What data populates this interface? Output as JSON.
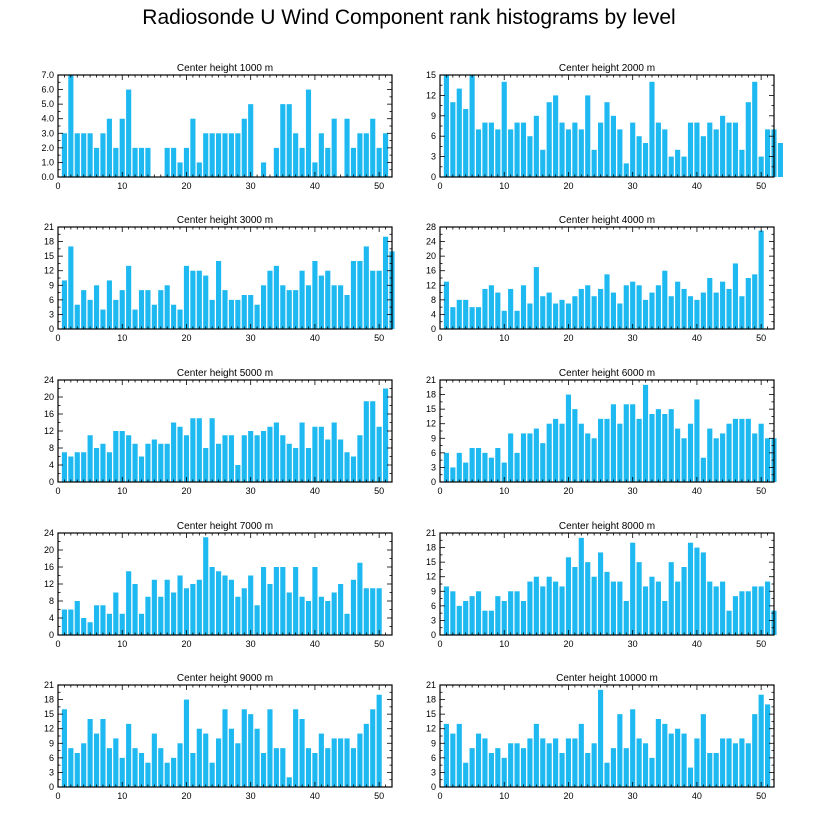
{
  "title": "Radiosonde U Wind Component rank histograms by level",
  "bar_color": "#1EB9F0",
  "chart_data": [
    {
      "type": "bar",
      "title": "Center height 1000 m",
      "xlim": [
        0,
        52
      ],
      "ylim": [
        0,
        7
      ],
      "xticks": [
        0,
        10,
        20,
        30,
        40,
        50
      ],
      "yticks": [
        "0.0",
        "1.0",
        "2.0",
        "3.0",
        "4.0",
        "5.0",
        "6.0",
        "7.0"
      ],
      "values": [
        3,
        7,
        3,
        3,
        3,
        2,
        3,
        4,
        2,
        4,
        6,
        2,
        2,
        2,
        0,
        0,
        2,
        2,
        1,
        2,
        4,
        1,
        3,
        3,
        3,
        3,
        3,
        3,
        4,
        5,
        0,
        1,
        0,
        2,
        5,
        5,
        3,
        2,
        6,
        1,
        3,
        2,
        4,
        0,
        4,
        2,
        3,
        3,
        4,
        2,
        3
      ]
    },
    {
      "type": "bar",
      "title": "Center height 2000 m",
      "xlim": [
        0,
        52
      ],
      "ylim": [
        0,
        15
      ],
      "xticks": [
        0,
        10,
        20,
        30,
        40,
        50
      ],
      "yticks": [
        "0",
        "3",
        "6",
        "9",
        "12",
        "15"
      ],
      "values": [
        15,
        11,
        13,
        10,
        15,
        7,
        8,
        8,
        7,
        14,
        7,
        8,
        8,
        6,
        9,
        4,
        11,
        12,
        8,
        7,
        8,
        7,
        12,
        4,
        8,
        11,
        9,
        7,
        2,
        8,
        6,
        5,
        14,
        8,
        7,
        3,
        4,
        3,
        8,
        8,
        6,
        8,
        7,
        9,
        8,
        8,
        4,
        11,
        14,
        3,
        7,
        7,
        5
      ]
    },
    {
      "type": "bar",
      "title": "Center height 3000 m",
      "xlim": [
        0,
        52
      ],
      "ylim": [
        0,
        21
      ],
      "xticks": [
        0,
        10,
        20,
        30,
        40,
        50
      ],
      "yticks": [
        "0",
        "3",
        "6",
        "9",
        "12",
        "15",
        "18",
        "21"
      ],
      "values": [
        10,
        17,
        5,
        8,
        6,
        9,
        4,
        10,
        6,
        8,
        13,
        4,
        8,
        8,
        5,
        8,
        9,
        5,
        4,
        13,
        12,
        12,
        11,
        6,
        14,
        8,
        6,
        6,
        7,
        7,
        5,
        9,
        12,
        13,
        9,
        8,
        8,
        12,
        9,
        14,
        11,
        12,
        9,
        9,
        7,
        14,
        14,
        17,
        12,
        12,
        19,
        16
      ]
    },
    {
      "type": "bar",
      "title": "Center height 4000 m",
      "xlim": [
        0,
        52
      ],
      "ylim": [
        0,
        28
      ],
      "xticks": [
        0,
        10,
        20,
        30,
        40,
        50
      ],
      "yticks": [
        "0",
        "4",
        "8",
        "12",
        "16",
        "20",
        "24",
        "28"
      ],
      "values": [
        13,
        6,
        8,
        8,
        6,
        6,
        11,
        12,
        10,
        5,
        11,
        5,
        12,
        7,
        17,
        9,
        10,
        7,
        8,
        7,
        9,
        11,
        12,
        9,
        11,
        15,
        10,
        7,
        12,
        13,
        12,
        8,
        10,
        12,
        16,
        9,
        13,
        11,
        9,
        8,
        10,
        14,
        10,
        13,
        11,
        18,
        9,
        14,
        15,
        27
      ]
    },
    {
      "type": "bar",
      "title": "Center height 5000 m",
      "xlim": [
        0,
        52
      ],
      "ylim": [
        0,
        24
      ],
      "xticks": [
        0,
        10,
        20,
        30,
        40,
        50
      ],
      "yticks": [
        "0",
        "4",
        "8",
        "12",
        "16",
        "20",
        "24"
      ],
      "values": [
        7,
        6,
        7,
        7,
        11,
        8,
        9,
        7,
        12,
        12,
        11,
        9,
        6,
        9,
        10,
        9,
        9,
        14,
        13,
        11,
        15,
        15,
        8,
        15,
        9,
        11,
        11,
        4,
        11,
        12,
        11,
        12,
        13,
        14,
        11,
        9,
        8,
        14,
        8,
        13,
        13,
        10,
        14,
        10,
        7,
        6,
        11,
        19,
        19,
        13,
        22
      ]
    },
    {
      "type": "bar",
      "title": "Center height 6000 m",
      "xlim": [
        0,
        52
      ],
      "ylim": [
        0,
        21
      ],
      "xticks": [
        0,
        10,
        20,
        30,
        40,
        50
      ],
      "yticks": [
        "0",
        "3",
        "6",
        "9",
        "12",
        "15",
        "18",
        "21"
      ],
      "values": [
        6,
        3,
        6,
        4,
        7,
        7,
        6,
        5,
        7,
        4,
        10,
        6,
        10,
        10,
        11,
        8,
        12,
        13,
        12,
        18,
        15,
        12,
        10,
        9,
        13,
        13,
        16,
        12,
        16,
        16,
        13,
        20,
        14,
        15,
        14,
        15,
        11,
        9,
        12,
        17,
        5,
        11,
        9,
        10,
        12,
        13,
        13,
        13,
        10,
        12,
        9,
        9
      ]
    },
    {
      "type": "bar",
      "title": "Center height 7000 m",
      "xlim": [
        0,
        52
      ],
      "ylim": [
        0,
        24
      ],
      "xticks": [
        0,
        10,
        20,
        30,
        40,
        50
      ],
      "yticks": [
        "0",
        "4",
        "8",
        "12",
        "16",
        "20",
        "24"
      ],
      "values": [
        6,
        6,
        8,
        4,
        3,
        7,
        7,
        5,
        10,
        5,
        15,
        12,
        5,
        9,
        13,
        9,
        13,
        10,
        14,
        11,
        12,
        13,
        23,
        16,
        15,
        14,
        13,
        9,
        11,
        14,
        7,
        16,
        12,
        16,
        16,
        10,
        16,
        9,
        8,
        16,
        9,
        8,
        10,
        12,
        5,
        13,
        17,
        11,
        11,
        11
      ]
    },
    {
      "type": "bar",
      "title": "Center height 8000 m",
      "xlim": [
        0,
        52
      ],
      "ylim": [
        0,
        21
      ],
      "xticks": [
        0,
        10,
        20,
        30,
        40,
        50
      ],
      "yticks": [
        "0",
        "3",
        "6",
        "9",
        "12",
        "15",
        "18",
        "21"
      ],
      "values": [
        10,
        9,
        6,
        7,
        8,
        9,
        5,
        5,
        8,
        7,
        9,
        9,
        7,
        11,
        12,
        10,
        12,
        11,
        10,
        16,
        14,
        20,
        15,
        12,
        17,
        13,
        11,
        11,
        7,
        19,
        15,
        10,
        12,
        11,
        7,
        15,
        11,
        14,
        19,
        18,
        17,
        11,
        10,
        11,
        5,
        8,
        9,
        9,
        10,
        10,
        11,
        5
      ]
    },
    {
      "type": "bar",
      "title": "Center height 9000 m",
      "xlim": [
        0,
        52
      ],
      "ylim": [
        0,
        21
      ],
      "xticks": [
        0,
        10,
        20,
        30,
        40,
        50
      ],
      "yticks": [
        "0",
        "3",
        "6",
        "9",
        "12",
        "15",
        "18",
        "21"
      ],
      "values": [
        16,
        8,
        7,
        9,
        14,
        11,
        14,
        8,
        10,
        6,
        13,
        8,
        7,
        5,
        11,
        8,
        5,
        6,
        9,
        18,
        7,
        12,
        11,
        5,
        10,
        16,
        12,
        9,
        16,
        15,
        12,
        7,
        16,
        8,
        8,
        2,
        16,
        14,
        8,
        7,
        11,
        8,
        10,
        10,
        10,
        8,
        11,
        13,
        16,
        19
      ]
    },
    {
      "type": "bar",
      "title": "Center height 10000 m",
      "xlim": [
        0,
        52
      ],
      "ylim": [
        0,
        21
      ],
      "xticks": [
        0,
        10,
        20,
        30,
        40,
        50
      ],
      "yticks": [
        "0",
        "3",
        "6",
        "9",
        "12",
        "15",
        "18",
        "21"
      ],
      "values": [
        13,
        11,
        13,
        5,
        8,
        11,
        10,
        7,
        8,
        6,
        9,
        9,
        8,
        10,
        13,
        10,
        9,
        10,
        7,
        10,
        10,
        13,
        7,
        9,
        20,
        5,
        8,
        15,
        8,
        16,
        10,
        9,
        6,
        14,
        13,
        11,
        12,
        11,
        4,
        10,
        15,
        7,
        7,
        10,
        10,
        9,
        10,
        9,
        15,
        19,
        17
      ]
    }
  ]
}
